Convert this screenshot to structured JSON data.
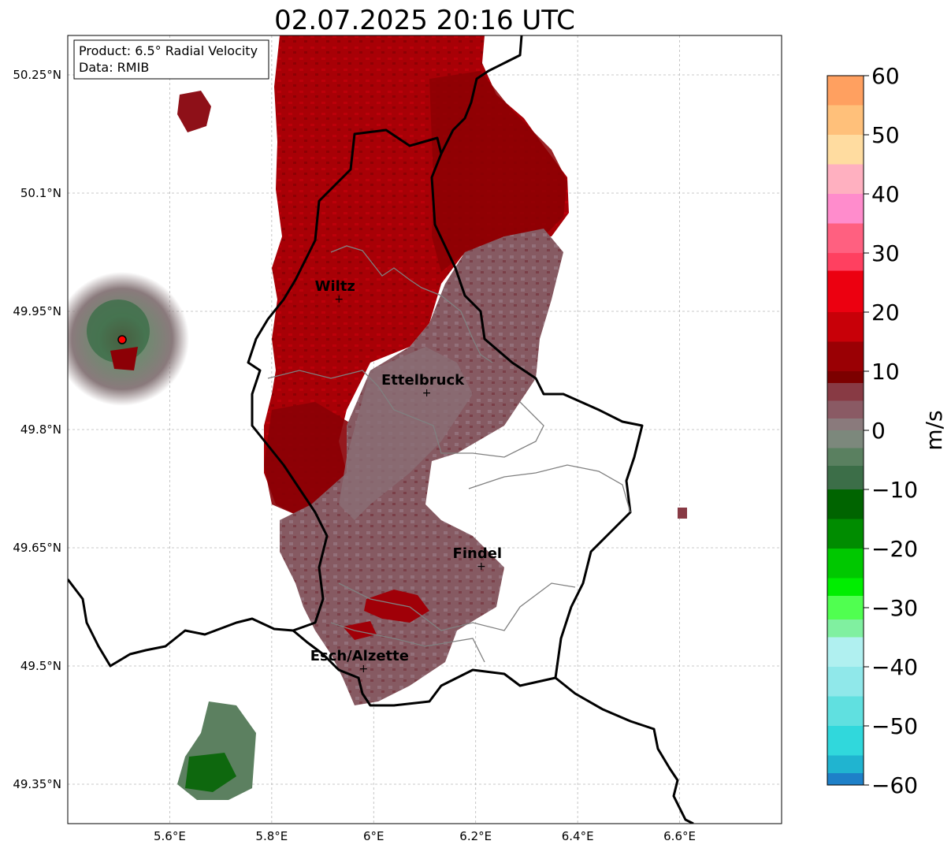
{
  "title": "02.07.2025 20:16 UTC",
  "info_box": {
    "line1": "Product: 6.5° Radial Velocity",
    "line2": "Data: RMIB"
  },
  "map": {
    "lon_range": [
      5.4,
      6.8
    ],
    "lat_range": [
      49.3,
      50.3
    ],
    "x_ticks": [
      {
        "value": 5.6,
        "label": "5.6°E"
      },
      {
        "value": 5.8,
        "label": "5.8°E"
      },
      {
        "value": 6.0,
        "label": "6°E"
      },
      {
        "value": 6.2,
        "label": "6.2°E"
      },
      {
        "value": 6.4,
        "label": "6.4°E"
      },
      {
        "value": 6.6,
        "label": "6.6°E"
      }
    ],
    "y_ticks": [
      {
        "value": 50.25,
        "label": "50.25°N"
      },
      {
        "value": 50.1,
        "label": "50.1°N"
      },
      {
        "value": 49.95,
        "label": "49.95°N"
      },
      {
        "value": 49.8,
        "label": "49.8°N"
      },
      {
        "value": 49.65,
        "label": "49.65°N"
      },
      {
        "value": 49.5,
        "label": "49.5°N"
      },
      {
        "value": 49.35,
        "label": "49.35°N"
      }
    ],
    "grid": true,
    "radar_site": {
      "lon": 5.505,
      "lat": 49.915
    },
    "cities": [
      {
        "name": "Wiltz",
        "lon": 5.932,
        "lat": 49.966
      },
      {
        "name": "Ettelbruck",
        "lon": 6.104,
        "lat": 49.847
      },
      {
        "name": "Findel",
        "lon": 6.211,
        "lat": 49.627
      },
      {
        "name": "Esch/Alzette",
        "lon": 5.98,
        "lat": 49.497
      }
    ]
  },
  "colorbar": {
    "label": "m/s",
    "min": -60,
    "max": 60,
    "ticks": [
      {
        "value": 60,
        "label": "60"
      },
      {
        "value": 50,
        "label": "50"
      },
      {
        "value": 40,
        "label": "40"
      },
      {
        "value": 30,
        "label": "30"
      },
      {
        "value": 20,
        "label": "20"
      },
      {
        "value": 10,
        "label": "10"
      },
      {
        "value": 0,
        "label": "0"
      },
      {
        "value": -10,
        "label": "−10"
      },
      {
        "value": -20,
        "label": "−20"
      },
      {
        "value": -30,
        "label": "−30"
      },
      {
        "value": -40,
        "label": "−40"
      },
      {
        "value": -50,
        "label": "−50"
      },
      {
        "value": -60,
        "label": "−60"
      }
    ],
    "bands": [
      {
        "from": 55,
        "to": 60,
        "color": "#ffa060"
      },
      {
        "from": 50,
        "to": 55,
        "color": "#ffc07a"
      },
      {
        "from": 45,
        "to": 50,
        "color": "#ffdca0"
      },
      {
        "from": 40,
        "to": 45,
        "color": "#ffb0c0"
      },
      {
        "from": 35,
        "to": 40,
        "color": "#ff8ccc"
      },
      {
        "from": 30,
        "to": 35,
        "color": "#ff6080"
      },
      {
        "from": 27,
        "to": 30,
        "color": "#ff4060"
      },
      {
        "from": 20,
        "to": 27,
        "color": "#ec0010"
      },
      {
        "from": 15,
        "to": 20,
        "color": "#c80008"
      },
      {
        "from": 10,
        "to": 15,
        "color": "#9a0004"
      },
      {
        "from": 8,
        "to": 10,
        "color": "#7c0000"
      },
      {
        "from": 5,
        "to": 8,
        "color": "#883a44"
      },
      {
        "from": 2,
        "to": 5,
        "color": "#8a5a64"
      },
      {
        "from": 0,
        "to": 2,
        "color": "#8a7a7c"
      },
      {
        "from": -3,
        "to": 0,
        "color": "#7c887c"
      },
      {
        "from": -6,
        "to": -3,
        "color": "#5a8060"
      },
      {
        "from": -10,
        "to": -6,
        "color": "#3c6e48"
      },
      {
        "from": -15,
        "to": -10,
        "color": "#006400"
      },
      {
        "from": -20,
        "to": -15,
        "color": "#008c00"
      },
      {
        "from": -25,
        "to": -20,
        "color": "#00c800"
      },
      {
        "from": -28,
        "to": -25,
        "color": "#00ee00"
      },
      {
        "from": -32,
        "to": -28,
        "color": "#50ff50"
      },
      {
        "from": -35,
        "to": -32,
        "color": "#80f0a0"
      },
      {
        "from": -40,
        "to": -35,
        "color": "#b0f0f0"
      },
      {
        "from": -45,
        "to": -40,
        "color": "#90e8ea"
      },
      {
        "from": -50,
        "to": -45,
        "color": "#60e0e0"
      },
      {
        "from": -55,
        "to": -50,
        "color": "#30d8dc"
      },
      {
        "from": -58,
        "to": -55,
        "color": "#20b4d0"
      },
      {
        "from": -60,
        "to": -58,
        "color": "#1e80c8"
      }
    ]
  }
}
